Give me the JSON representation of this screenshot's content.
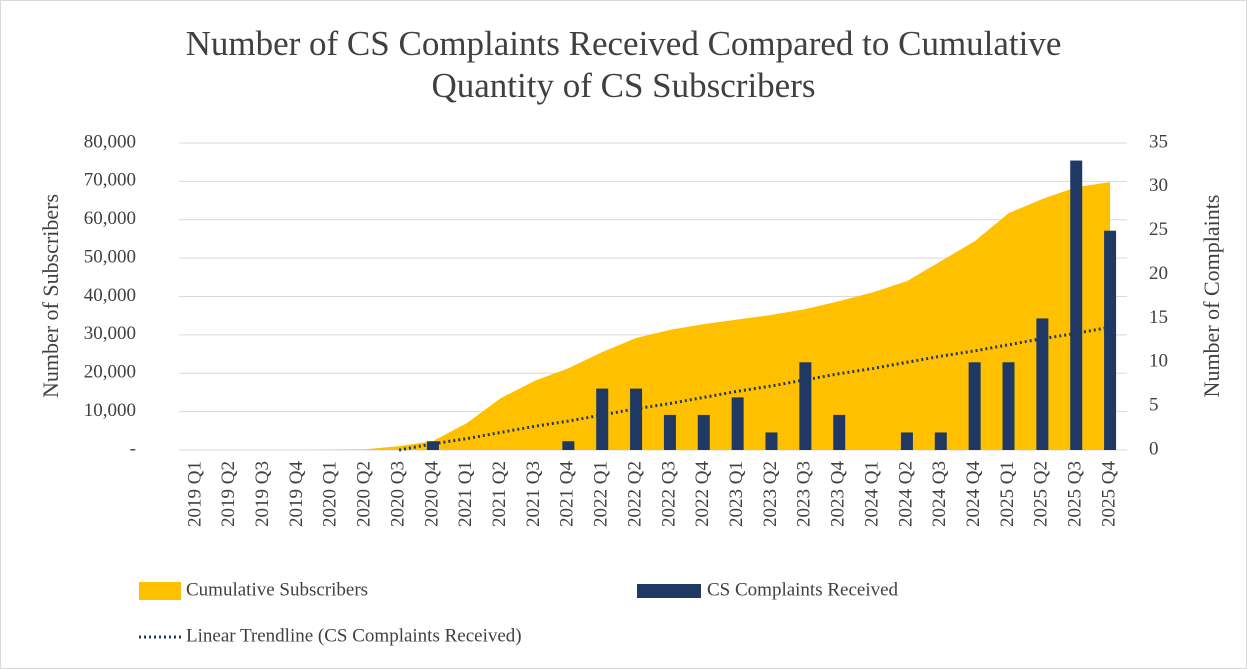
{
  "chart_data": {
    "type": "combo",
    "title": "Number of CS Complaints Received Compared to Cumulative Quantity of CS Subscribers",
    "y_label": "Number of Subscribers",
    "y2_label": "Number of Complaints",
    "categories": [
      "2019 Q1",
      "2019 Q2",
      "2019 Q3",
      "2019 Q4",
      "2020 Q1",
      "2020 Q2",
      "2020 Q3",
      "2020 Q4",
      "2021 Q1",
      "2021 Q2",
      "2021 Q3",
      "2021 Q4",
      "2022 Q1",
      "2022 Q2",
      "2022 Q3",
      "2022 Q4",
      "2023 Q1",
      "2023 Q2",
      "2023 Q3",
      "2023 Q4",
      "2024 Q1",
      "2024 Q2",
      "2024 Q3",
      "2024 Q4",
      "2025 Q1",
      "2025 Q2",
      "2025 Q3",
      "2025 Q4"
    ],
    "series": [
      {
        "name": "Cumulative Subscribers",
        "type": "area",
        "color": "#ffc000",
        "values": [
          0,
          0,
          0,
          0,
          100,
          200,
          1000,
          2300,
          7000,
          13500,
          18000,
          21300,
          25500,
          29200,
          31300,
          32800,
          34000,
          35200,
          36700,
          38800,
          41100,
          44000,
          49200,
          54400,
          61700,
          65400,
          68500,
          69800
        ]
      },
      {
        "name": "CS Complaints Received",
        "type": "bar",
        "axis": "y2",
        "color": "#203864",
        "values": [
          0,
          0,
          0,
          0,
          0,
          0,
          0,
          1,
          0,
          0,
          0,
          1,
          7,
          7,
          4,
          4,
          6,
          2,
          10,
          4,
          0,
          2,
          2,
          10,
          10,
          15,
          33,
          25
        ]
      },
      {
        "name": "Linear Trendline (CS Complaints Received)",
        "type": "line",
        "axis": "y2",
        "color": "#203864",
        "dash": "dotted",
        "values": [
          null,
          null,
          null,
          null,
          null,
          null,
          0,
          0.7,
          1.3,
          2,
          2.7,
          3.3,
          4,
          4.7,
          5.3,
          6,
          6.7,
          7.3,
          8,
          8.7,
          9.3,
          10,
          10.7,
          11.3,
          12,
          12.7,
          13.3,
          14
        ]
      }
    ],
    "ylim": [
      0,
      80000
    ],
    "yticks": [
      {
        "value": 0,
        "label": "-"
      },
      {
        "value": 10000,
        "label": "10,000"
      },
      {
        "value": 20000,
        "label": "20,000"
      },
      {
        "value": 30000,
        "label": "30,000"
      },
      {
        "value": 40000,
        "label": "40,000"
      },
      {
        "value": 50000,
        "label": "50,000"
      },
      {
        "value": 60000,
        "label": "60,000"
      },
      {
        "value": 70000,
        "label": "70,000"
      },
      {
        "value": 80000,
        "label": "80,000"
      }
    ],
    "y2lim": [
      0,
      35
    ],
    "y2ticks": [
      0,
      5,
      10,
      15,
      20,
      25,
      30,
      35
    ],
    "grid": true,
    "legend": "bottom"
  }
}
